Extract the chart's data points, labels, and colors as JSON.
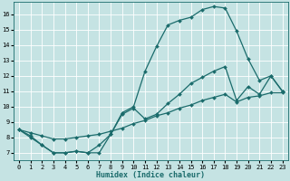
{
  "xlabel": "Humidex (Indice chaleur)",
  "background_color": "#c5e3e3",
  "line_color": "#1a6b6b",
  "grid_color": "#ffffff",
  "xlim": [
    -0.5,
    23.5
  ],
  "ylim": [
    6.5,
    16.8
  ],
  "yticks": [
    7,
    8,
    9,
    10,
    11,
    12,
    13,
    14,
    15,
    16
  ],
  "xticks": [
    0,
    1,
    2,
    3,
    4,
    5,
    6,
    7,
    8,
    9,
    10,
    11,
    12,
    13,
    14,
    15,
    16,
    17,
    18,
    19,
    20,
    21,
    22,
    23
  ],
  "line1_x": [
    0,
    1,
    2,
    3,
    4,
    5,
    6,
    7,
    8,
    9,
    10,
    11,
    12,
    13,
    14,
    15,
    16,
    17,
    18,
    19,
    20,
    21,
    22,
    23
  ],
  "line1_y": [
    8.5,
    8.0,
    7.5,
    7.0,
    7.0,
    7.1,
    7.0,
    7.0,
    8.2,
    9.6,
    10.0,
    12.3,
    13.9,
    15.3,
    15.6,
    15.8,
    16.3,
    16.5,
    16.4,
    14.9,
    13.1,
    11.7,
    12.0,
    11.0
  ],
  "line2_x": [
    0,
    1,
    2,
    3,
    4,
    5,
    6,
    7,
    8,
    9,
    10,
    11,
    12,
    13,
    14,
    15,
    16,
    17,
    18,
    19,
    20,
    21,
    22,
    23
  ],
  "line2_y": [
    8.5,
    8.1,
    7.5,
    7.0,
    7.0,
    7.1,
    7.0,
    7.5,
    8.2,
    9.5,
    9.9,
    9.2,
    9.5,
    10.2,
    10.8,
    11.5,
    11.9,
    12.3,
    12.6,
    10.4,
    11.3,
    10.8,
    12.0,
    11.0
  ],
  "line3_x": [
    0,
    1,
    2,
    3,
    4,
    5,
    6,
    7,
    8,
    9,
    10,
    11,
    12,
    13,
    14,
    15,
    16,
    17,
    18,
    19,
    20,
    21,
    22,
    23
  ],
  "line3_y": [
    8.5,
    8.3,
    8.1,
    7.9,
    7.9,
    8.0,
    8.1,
    8.2,
    8.4,
    8.6,
    8.9,
    9.1,
    9.4,
    9.6,
    9.9,
    10.1,
    10.4,
    10.6,
    10.8,
    10.3,
    10.6,
    10.7,
    10.9,
    10.9
  ],
  "linewidth": 0.9,
  "markersize": 2.0,
  "tick_labelsize": 5.0,
  "xlabel_fontsize": 6.0
}
